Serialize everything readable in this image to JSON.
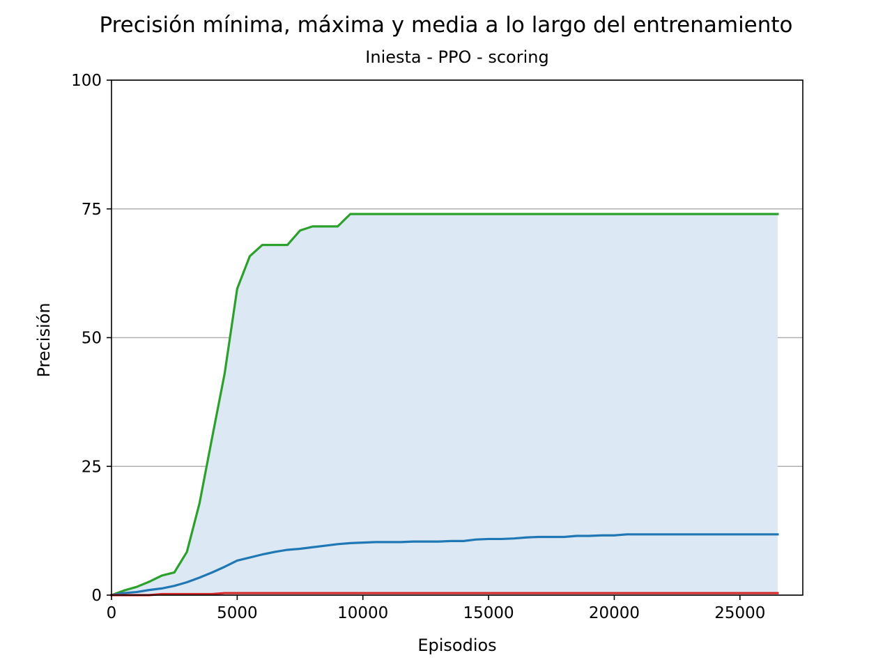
{
  "chart_data": {
    "type": "line",
    "title": "Precisión mínima, máxima y media a lo largo del entrenamiento",
    "subtitle": "Iniesta - PPO - scoring",
    "xlabel": "Episodios",
    "ylabel": "Precisión",
    "xlim": [
      0,
      27500
    ],
    "ylim": [
      0,
      100
    ],
    "xticks": [
      0,
      5000,
      10000,
      15000,
      20000,
      25000
    ],
    "yticks": [
      0,
      25,
      50,
      75,
      100
    ],
    "grid": "horizontal",
    "fill_between": {
      "lower": "min",
      "upper": "max",
      "color": "#dce8f3"
    },
    "x": [
      0,
      500,
      1000,
      1500,
      2000,
      2500,
      3000,
      3500,
      4000,
      4500,
      5000,
      5500,
      6000,
      6500,
      7000,
      7500,
      8000,
      8500,
      9000,
      9500,
      10000,
      10500,
      11000,
      11500,
      12000,
      12500,
      13000,
      13500,
      14000,
      14500,
      15000,
      15500,
      16000,
      16500,
      17000,
      17500,
      18000,
      18500,
      19000,
      19500,
      20000,
      20500,
      21000,
      21500,
      22000,
      22500,
      23000,
      23500,
      24000,
      24500,
      25000,
      25500,
      26000,
      26500
    ],
    "series": [
      {
        "id": "max",
        "color": "#2ca02c",
        "values": [
          0,
          0.9,
          1.6,
          2.6,
          3.8,
          4.4,
          8.4,
          17.8,
          30.5,
          43.0,
          59.5,
          65.8,
          68.0,
          68.0,
          68.0,
          70.8,
          71.6,
          71.6,
          71.6,
          74.0,
          74.0,
          74.0,
          74.0,
          74.0,
          74.0,
          74.0,
          74.0,
          74.0,
          74.0,
          74.0,
          74.0,
          74.0,
          74.0,
          74.0,
          74.0,
          74.0,
          74.0,
          74.0,
          74.0,
          74.0,
          74.0,
          74.0,
          74.0,
          74.0,
          74.0,
          74.0,
          74.0,
          74.0,
          74.0,
          74.0,
          74.0,
          74.0,
          74.0,
          74.0
        ]
      },
      {
        "id": "mean",
        "color": "#1f77b4",
        "values": [
          0,
          0.4,
          0.6,
          1.0,
          1.3,
          1.8,
          2.5,
          3.4,
          4.4,
          5.5,
          6.7,
          7.3,
          7.9,
          8.4,
          8.8,
          9.0,
          9.3,
          9.6,
          9.9,
          10.1,
          10.2,
          10.3,
          10.3,
          10.3,
          10.4,
          10.4,
          10.4,
          10.5,
          10.5,
          10.8,
          10.9,
          10.9,
          11.0,
          11.2,
          11.3,
          11.3,
          11.3,
          11.5,
          11.5,
          11.6,
          11.6,
          11.8,
          11.8,
          11.8,
          11.8,
          11.8,
          11.8,
          11.8,
          11.8,
          11.8,
          11.8,
          11.8,
          11.8,
          11.8
        ]
      },
      {
        "id": "min",
        "color": "#d62728",
        "values": [
          0,
          0,
          0,
          0,
          0.2,
          0.2,
          0.2,
          0.2,
          0.2,
          0.4,
          0.4,
          0.4,
          0.4,
          0.4,
          0.4,
          0.4,
          0.4,
          0.4,
          0.4,
          0.4,
          0.4,
          0.4,
          0.4,
          0.4,
          0.4,
          0.4,
          0.4,
          0.4,
          0.4,
          0.4,
          0.4,
          0.4,
          0.4,
          0.4,
          0.4,
          0.4,
          0.4,
          0.4,
          0.4,
          0.4,
          0.4,
          0.4,
          0.4,
          0.4,
          0.4,
          0.4,
          0.4,
          0.4,
          0.4,
          0.4,
          0.4,
          0.4,
          0.4,
          0.4
        ]
      }
    ]
  }
}
